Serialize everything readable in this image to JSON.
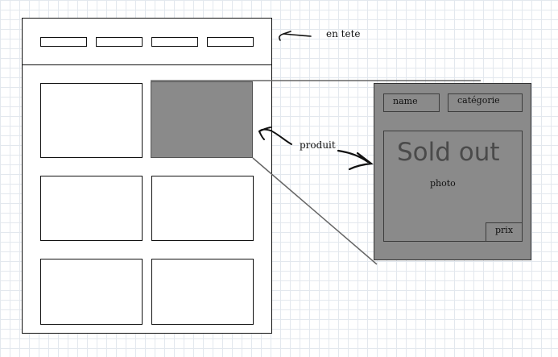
{
  "annotations": {
    "header": "en tete",
    "product": "produit"
  },
  "product_detail": {
    "name": "name",
    "category": "catégorie",
    "status": "Sold out",
    "photo": "photo",
    "price": "prix"
  },
  "colors": {
    "selected_card": "#8a8a8a",
    "stroke": "#111111"
  }
}
